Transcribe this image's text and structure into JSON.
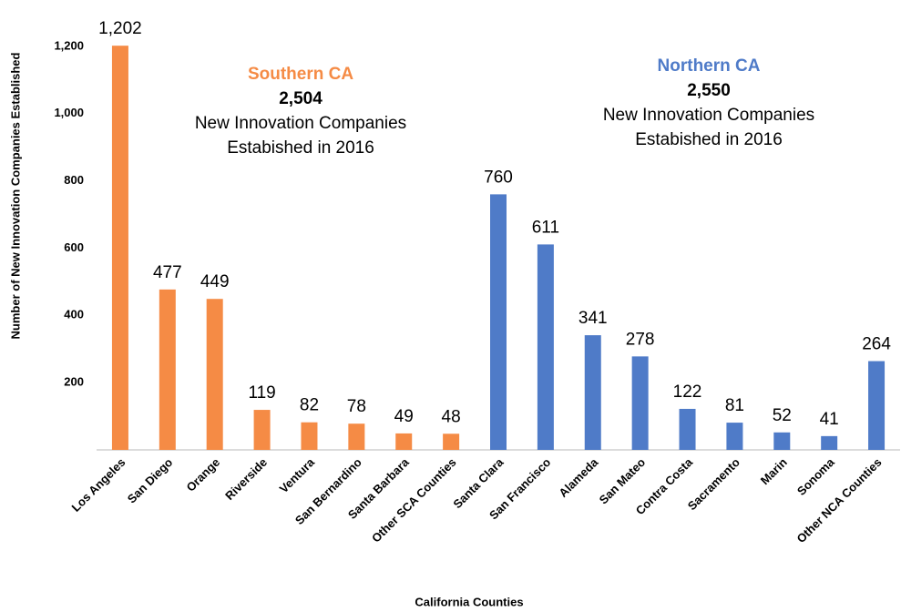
{
  "chart_data": {
    "type": "bar",
    "x_label": "California Counties",
    "y_label": "Number of New Innovation Companies Established",
    "categories": [
      "Los Angeles",
      "San Diego",
      "Orange",
      "Riverside",
      "Ventura",
      "San Bernardino",
      "Santa Barbara",
      "Other SCA Counties",
      "Santa Clara",
      "San Francisco",
      "Alameda",
      "San Mateo",
      "Contra Costa",
      "Sacramento",
      "Marin",
      "Sonoma",
      "Other NCA Counties"
    ],
    "values": [
      1202,
      477,
      449,
      119,
      82,
      78,
      49,
      48,
      760,
      611,
      341,
      278,
      122,
      81,
      52,
      41,
      264
    ],
    "value_labels": [
      "1,202",
      "477",
      "449",
      "119",
      "82",
      "78",
      "49",
      "48",
      "760",
      "611",
      "341",
      "278",
      "122",
      "81",
      "52",
      "41",
      "264"
    ],
    "colors": [
      "#f58b45",
      "#f58b45",
      "#f58b45",
      "#f58b45",
      "#f58b45",
      "#f58b45",
      "#f58b45",
      "#f58b45",
      "#4f7bc8",
      "#4f7bc8",
      "#4f7bc8",
      "#4f7bc8",
      "#4f7bc8",
      "#4f7bc8",
      "#4f7bc8",
      "#4f7bc8",
      "#4f7bc8"
    ],
    "ylim": [
      0,
      1300
    ],
    "yticks": [
      200,
      400,
      600,
      800,
      {
        "value": 1000,
        "label": "1,000"
      },
      {
        "value": 1200,
        "label": "1,200"
      }
    ],
    "grid": false,
    "annotations": [
      {
        "heading": "Southern CA",
        "total": "2,504",
        "lines": [
          "New Innovation Companies",
          "Estabished in 2016"
        ],
        "color": "#f58b45"
      },
      {
        "heading": "Northern CA",
        "total": "2,550",
        "lines": [
          "New Innovation Companies",
          "Estabished in 2016"
        ],
        "color": "#4f7bc8"
      }
    ]
  }
}
